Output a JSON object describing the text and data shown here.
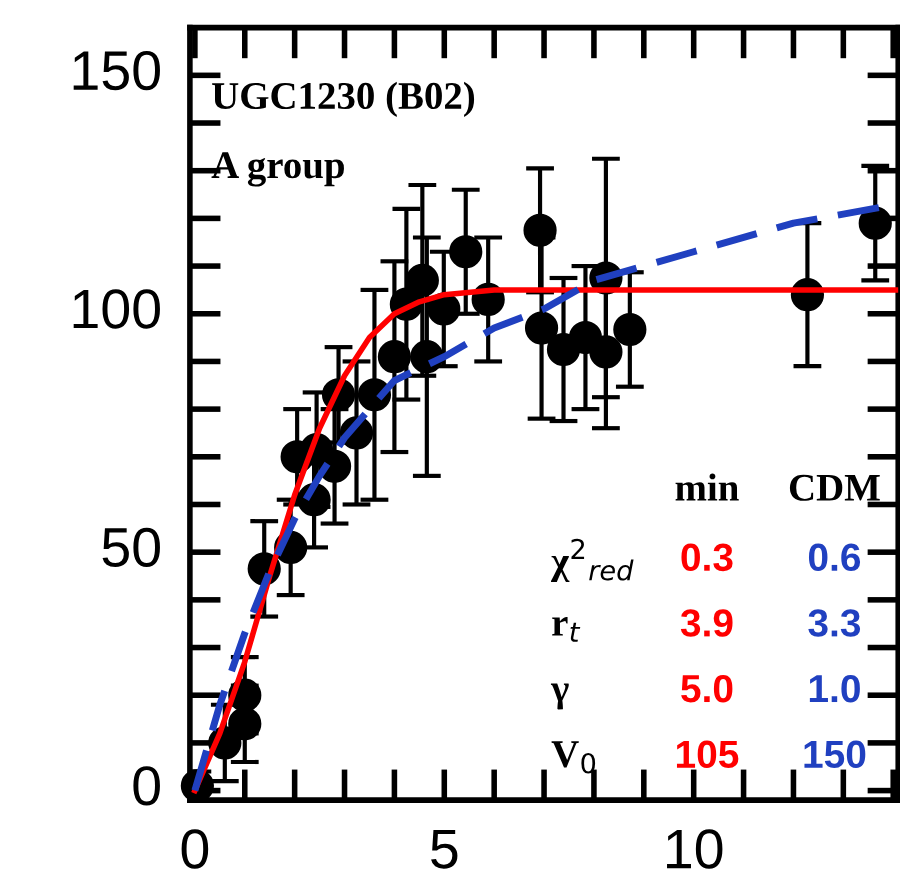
{
  "chart_data": {
    "type": "scatter",
    "title": "UGC1230 (B02)",
    "subtitle": "A group",
    "xlim": [
      -0.1,
      14.1
    ],
    "ylim": [
      -2,
      160
    ],
    "xticks": [
      0,
      {
        "value": 1,
        "label": null
      },
      {
        "value": 2,
        "label": null
      },
      {
        "value": 3,
        "label": null
      },
      {
        "value": 4,
        "label": null
      },
      5,
      {
        "value": 6,
        "label": null
      },
      {
        "value": 7,
        "label": null
      },
      {
        "value": 8,
        "label": null
      },
      {
        "value": 9,
        "label": null
      },
      10,
      {
        "value": 11,
        "label": null
      },
      {
        "value": 12,
        "label": null
      },
      {
        "value": 13,
        "label": null
      },
      {
        "value": 14,
        "label": null
      }
    ],
    "yticks": [
      0,
      {
        "value": 10,
        "label": null
      },
      {
        "value": 20,
        "label": null
      },
      {
        "value": 30,
        "label": null
      },
      {
        "value": 40,
        "label": null
      },
      50,
      {
        "value": 60,
        "label": null
      },
      {
        "value": 70,
        "label": null
      },
      {
        "value": 80,
        "label": null
      },
      {
        "value": 90,
        "label": null
      },
      100,
      {
        "value": 110,
        "label": null
      },
      {
        "value": 120,
        "label": null
      },
      {
        "value": 130,
        "label": null
      },
      {
        "value": 140,
        "label": null
      },
      150
    ],
    "grid": false,
    "legend": false,
    "series": [
      {
        "type": "scatter",
        "marker": "circle",
        "color": "#000000",
        "x": [
          0.05,
          0.6,
          1.0,
          1.0,
          1.39,
          1.92,
          2.05,
          2.39,
          2.44,
          2.8,
          2.88,
          3.24,
          3.6,
          4.0,
          4.24,
          4.56,
          4.65,
          4.99,
          5.43,
          5.88,
          6.92,
          6.95,
          7.39,
          7.83,
          8.24,
          8.24,
          8.72,
          12.28,
          13.64
        ],
        "values": [
          1,
          10,
          14,
          20,
          46.5,
          51,
          70,
          61,
          71.5,
          68,
          83,
          75,
          83,
          91,
          102,
          107,
          91,
          101,
          113,
          103,
          117.5,
          97,
          92.5,
          95,
          92,
          107.5,
          96.7,
          104,
          119
        ],
        "errors": [
          3,
          8,
          8,
          8,
          10,
          10,
          10,
          10,
          12,
          12,
          10,
          15,
          22,
          20,
          20,
          20,
          25,
          12,
          13,
          13,
          13,
          19,
          15,
          15,
          16,
          25,
          12,
          15,
          12
        ]
      },
      {
        "type": "line",
        "color": "#ff0000",
        "line_style": "solid",
        "x": [
          0,
          0.5,
          1,
          1.5,
          2,
          2.5,
          3,
          3.5,
          4,
          4.5,
          5,
          6,
          8,
          14.1
        ],
        "values": [
          0,
          12,
          27,
          45,
          62,
          76,
          87,
          95,
          100,
          102.5,
          104,
          105,
          105,
          105
        ]
      },
      {
        "type": "line",
        "color": "#2040c0",
        "line_style": "dashed",
        "x": [
          0,
          0.5,
          1,
          1.5,
          2,
          2.5,
          3,
          3.5,
          4,
          5,
          6,
          7,
          8,
          10,
          12,
          14.1
        ],
        "values": [
          0,
          18,
          33,
          46,
          57,
          66,
          74,
          80,
          86,
          91,
          97,
          101,
          107,
          113,
          119,
          123
        ]
      }
    ],
    "annotations": [
      "min",
      "CDM",
      "χ$^{2}$$_{red}$",
      "0.3",
      "0.6",
      "r$_{t}$",
      "3.9",
      "3.3",
      "γ",
      "5.0",
      "1.0",
      "V$_{0}$",
      "105",
      "150"
    ]
  }
}
